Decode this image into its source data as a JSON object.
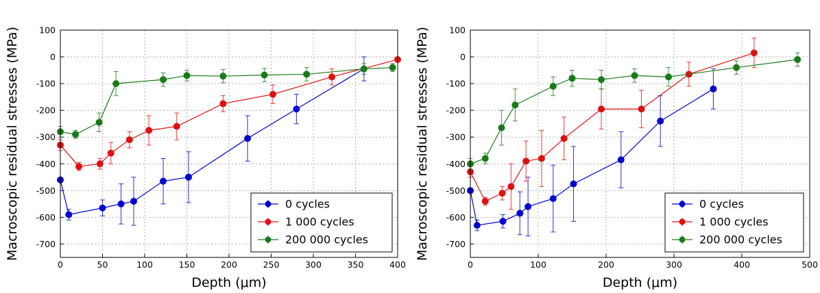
{
  "chart_data": [
    {
      "type": "line",
      "xlabel": "Depth (μm)",
      "ylabel": "Macroscopic residual stresses  (MPa)",
      "xlim": [
        0,
        400
      ],
      "ylim": [
        -750,
        100
      ],
      "xticks": [
        0,
        50,
        100,
        150,
        200,
        250,
        300,
        350,
        400
      ],
      "yticks": [
        100,
        0,
        -100,
        -200,
        -300,
        -400,
        -500,
        -600,
        -700
      ],
      "grid": true,
      "legend_position": "lower-right",
      "error_bars": true,
      "series": [
        {
          "name": "0 cycles",
          "color": "#0000cc",
          "x": [
            0,
            10,
            50,
            72,
            87,
            122,
            152,
            222,
            280,
            360
          ],
          "y": [
            -460,
            -590,
            -565,
            -550,
            -540,
            -465,
            -450,
            -305,
            -195,
            -45
          ],
          "err": [
            0,
            20,
            30,
            75,
            90,
            85,
            95,
            85,
            55,
            45
          ]
        },
        {
          "name": "1 000 cycles",
          "color": "#dd1111",
          "x": [
            0,
            22,
            47,
            60,
            82,
            105,
            138,
            193,
            252,
            322,
            400
          ],
          "y": [
            -330,
            -410,
            -400,
            -360,
            -310,
            -275,
            -260,
            -175,
            -140,
            -75,
            -10
          ],
          "err": [
            20,
            15,
            20,
            40,
            30,
            55,
            50,
            30,
            35,
            30,
            0
          ]
        },
        {
          "name": "200 000 cycles",
          "color": "#1a7a1a",
          "x": [
            0,
            18,
            46,
            66,
            122,
            150,
            193,
            242,
            292,
            360,
            394
          ],
          "y": [
            -280,
            -290,
            -245,
            -100,
            -85,
            -70,
            -72,
            -68,
            -65,
            -45,
            -40
          ],
          "err": [
            20,
            15,
            35,
            45,
            25,
            20,
            25,
            25,
            25,
            20,
            15
          ]
        }
      ]
    },
    {
      "type": "line",
      "xlabel": "Depth (μm)",
      "ylabel": "Macroscopic residual stresses  (MPa)",
      "xlim": [
        0,
        500
      ],
      "ylim": [
        -750,
        100
      ],
      "xticks": [
        0,
        100,
        200,
        300,
        400,
        500
      ],
      "yticks": [
        100,
        0,
        -100,
        -200,
        -300,
        -400,
        -500,
        -600,
        -700
      ],
      "grid": true,
      "legend_position": "lower-right",
      "error_bars": true,
      "series": [
        {
          "name": "0 cycles",
          "color": "#0000cc",
          "x": [
            0,
            10,
            48,
            73,
            85,
            122,
            152,
            222,
            280,
            358
          ],
          "y": [
            -500,
            -630,
            -615,
            -585,
            -560,
            -530,
            -475,
            -385,
            -240,
            -120
          ],
          "err": [
            0,
            20,
            25,
            80,
            110,
            125,
            140,
            105,
            95,
            75
          ]
        },
        {
          "name": "1 000 cycles",
          "color": "#dd1111",
          "x": [
            0,
            22,
            47,
            60,
            82,
            105,
            138,
            193,
            252,
            322,
            418
          ],
          "y": [
            -430,
            -540,
            -510,
            -485,
            -390,
            -380,
            -305,
            -195,
            -195,
            -65,
            15
          ],
          "err": [
            20,
            15,
            25,
            85,
            75,
            105,
            80,
            75,
            70,
            45,
            55
          ]
        },
        {
          "name": "200 000 cycles",
          "color": "#1a7a1a",
          "x": [
            0,
            22,
            46,
            66,
            122,
            150,
            193,
            242,
            292,
            392,
            482
          ],
          "y": [
            -400,
            -380,
            -265,
            -180,
            -110,
            -80,
            -85,
            -70,
            -75,
            -40,
            -10
          ],
          "err": [
            20,
            20,
            65,
            60,
            35,
            30,
            35,
            25,
            35,
            25,
            25
          ]
        }
      ]
    }
  ]
}
